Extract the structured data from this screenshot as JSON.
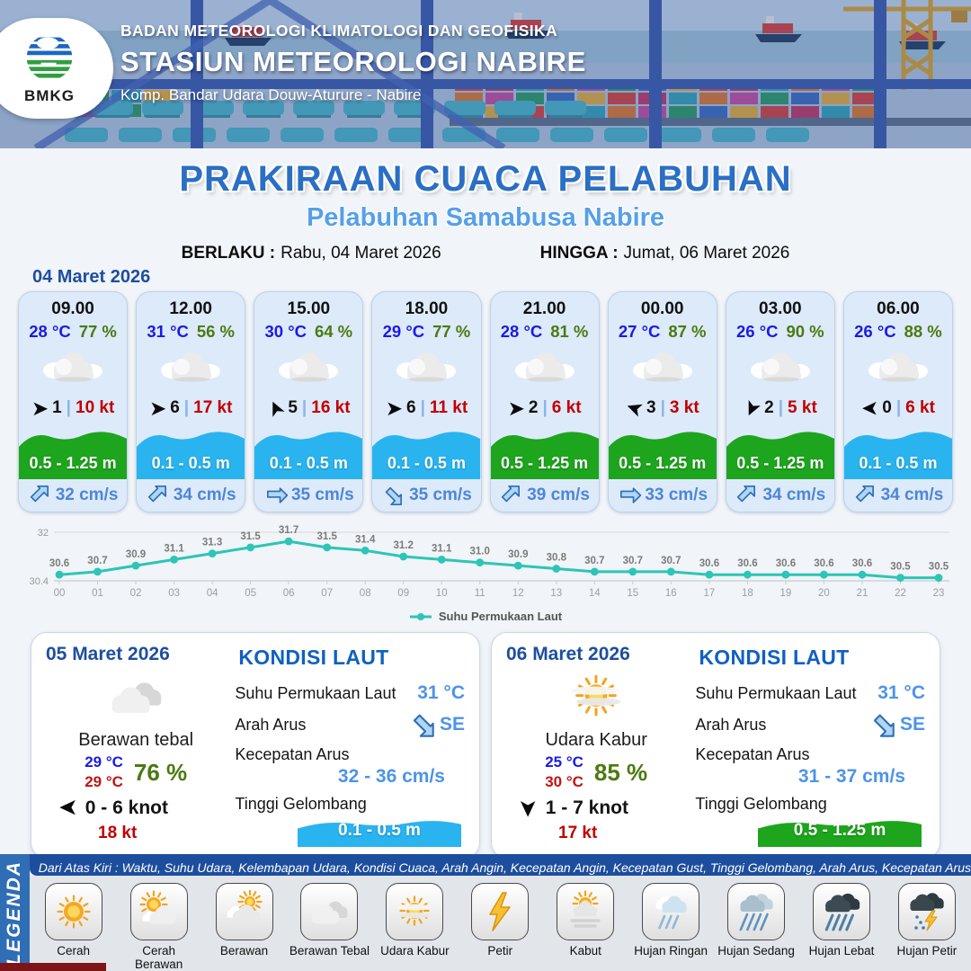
{
  "header": {
    "org": "BADAN METEOROLOGI KLIMATOLOGI DAN GEOFISIKA",
    "station": "STASIUN METEOROLOGI NABIRE",
    "address": "Komp. Bandar Udara Douw-Aturure - Nabire",
    "logo": "BMKG"
  },
  "title": {
    "main": "PRAKIRAAN CUACA PELABUHAN",
    "sub": "Pelabuhan Samabusa Nabire",
    "berlaku_label": "BERLAKU :",
    "berlaku_value": "Rabu, 04 Maret 2026",
    "hingga_label": "HINGGA :",
    "hingga_value": "Jumat, 06 Maret 2026"
  },
  "forecast": {
    "date_label": "04 Maret 2026",
    "cards": [
      {
        "time": "09.00",
        "temp": "28 °C",
        "humidity": "77 %",
        "icon": "berawan-hour",
        "wind_speed": "1",
        "gust": "10 kt",
        "wind_deg": 0,
        "wave": "0.5 - 1.25 m",
        "wave_class": "wave-green",
        "current": "32 cm/s",
        "current_deg": 0
      },
      {
        "time": "12.00",
        "temp": "31 °C",
        "humidity": "56 %",
        "icon": "berawan-hour",
        "wind_speed": "6",
        "gust": "17 kt",
        "wind_deg": 0,
        "wave": "0.1 - 0.5 m",
        "wave_class": "wave-blue",
        "current": "34 cm/s",
        "current_deg": 0
      },
      {
        "time": "15.00",
        "temp": "30 °C",
        "humidity": "64 %",
        "icon": "berawan-hour",
        "wind_speed": "5",
        "gust": "16 kt",
        "wind_deg": -115,
        "wave": "0.1 - 0.5 m",
        "wave_class": "wave-blue",
        "current": "35 cm/s",
        "current_deg": 45
      },
      {
        "time": "18.00",
        "temp": "29 °C",
        "humidity": "77 %",
        "icon": "berawan-hour",
        "wind_speed": "6",
        "gust": "11 kt",
        "wind_deg": 0,
        "wave": "0.1 - 0.5 m",
        "wave_class": "wave-blue",
        "current": "35 cm/s",
        "current_deg": 90
      },
      {
        "time": "21.00",
        "temp": "28 °C",
        "humidity": "81 %",
        "icon": "berawan-hour",
        "wind_speed": "2",
        "gust": "6 kt",
        "wind_deg": 0,
        "wave": "0.5 - 1.25 m",
        "wave_class": "wave-green",
        "current": "39 cm/s",
        "current_deg": 0
      },
      {
        "time": "00.00",
        "temp": "27 °C",
        "humidity": "87 %",
        "icon": "berawan-hour",
        "wind_speed": "3",
        "gust": "3 kt",
        "wind_deg": -160,
        "wave": "0.5 - 1.25 m",
        "wave_class": "wave-green",
        "current": "33 cm/s",
        "current_deg": 45
      },
      {
        "time": "03.00",
        "temp": "26 °C",
        "humidity": "90 %",
        "icon": "berawan-hour",
        "wind_speed": "2",
        "gust": "5 kt",
        "wind_deg": 115,
        "wave": "0.5 - 1.25 m",
        "wave_class": "wave-green",
        "current": "34 cm/s",
        "current_deg": 0
      },
      {
        "time": "06.00",
        "temp": "26 °C",
        "humidity": "88 %",
        "icon": "berawan-hour",
        "wind_speed": "0",
        "gust": "6 kt",
        "wind_deg": 180,
        "wave": "0.1 - 0.5 m",
        "wave_class": "wave-blue",
        "current": "34 cm/s",
        "current_deg": 0
      }
    ]
  },
  "chart_data": {
    "type": "line",
    "legend": "Suhu Permukaan Laut",
    "x": [
      "00",
      "01",
      "02",
      "03",
      "04",
      "05",
      "06",
      "07",
      "08",
      "09",
      "10",
      "11",
      "12",
      "13",
      "14",
      "15",
      "16",
      "17",
      "18",
      "19",
      "20",
      "21",
      "22",
      "23"
    ],
    "values": [
      30.6,
      30.7,
      30.9,
      31.1,
      31.3,
      31.5,
      31.7,
      31.5,
      31.4,
      31.2,
      31.1,
      31.0,
      30.9,
      30.8,
      30.7,
      30.7,
      30.7,
      30.6,
      30.6,
      30.6,
      30.6,
      30.6,
      30.5,
      30.5
    ],
    "ylim": [
      30.4,
      32
    ],
    "yticks": [
      "30.4",
      "32"
    ],
    "color": "#2cc5b6",
    "grid": true,
    "legend_position": "bottom"
  },
  "days": [
    {
      "date": "05 Maret 2026",
      "icon": "berawan-tebal",
      "condition": "Berawan tebal",
      "temp_min": "29 °C",
      "temp_max": "29 °C",
      "humidity": "76 %",
      "wind": "0 - 6 knot",
      "wind_deg": 180,
      "gust": "18 kt",
      "sea": {
        "title": "KONDISI LAUT",
        "sst_label": "Suhu Permukaan Laut",
        "sst": "31 °C",
        "dir_label": "Arah Arus",
        "dir": "SE",
        "dir_deg": 90,
        "speed_label": "Kecepatan Arus",
        "speed": "32 - 36 cm/s",
        "wave_label": "Tinggi Gelombang",
        "wave": "0.1 - 0.5 m",
        "wave_class": "wave-blue"
      }
    },
    {
      "date": "06 Maret 2026",
      "icon": "udara-kabur",
      "condition": "Udara Kabur",
      "temp_min": "25 °C",
      "temp_max": "30 °C",
      "humidity": "85 %",
      "wind": "1 - 7 knot",
      "wind_deg": 90,
      "gust": "17 kt",
      "sea": {
        "title": "KONDISI LAUT",
        "sst_label": "Suhu Permukaan Laut",
        "sst": "31 °C",
        "dir_label": "Arah Arus",
        "dir": "SE",
        "dir_deg": 90,
        "speed_label": "Kecepatan Arus",
        "speed": "31 - 37 cm/s",
        "wave_label": "Tinggi Gelombang",
        "wave": "0.5 - 1.25 m",
        "wave_class": "wave-green"
      }
    }
  ],
  "legend": {
    "heading": "LEGENDA",
    "note": "Dari Atas Kiri : Waktu, Suhu Udara, Kelembapan Udara, Kondisi Cuaca, Arah Angin, Kecepatan Angin, Kecepatan Gust, Tinggi Gelombang, Arah Arus, Kecepatan Arus",
    "items": [
      {
        "label": "Cerah",
        "icon": "cerah"
      },
      {
        "label": "Cerah Berawan",
        "icon": "cerah-berawan"
      },
      {
        "label": "Berawan",
        "icon": "berawan"
      },
      {
        "label": "Berawan Tebal",
        "icon": "berawan-tebal"
      },
      {
        "label": "Udara Kabur",
        "icon": "udara-kabur"
      },
      {
        "label": "Petir",
        "icon": "petir"
      },
      {
        "label": "Kabut",
        "icon": "kabut"
      },
      {
        "label": "Hujan Ringan",
        "icon": "hujan-ringan"
      },
      {
        "label": "Hujan Sedang",
        "icon": "hujan-sedang"
      },
      {
        "label": "Hujan Lebat",
        "icon": "hujan-lebat"
      },
      {
        "label": "Hujan Petir",
        "icon": "hujan-petir"
      }
    ]
  },
  "colors": {
    "primary_blue": "#1d4e9e",
    "title_blue": "#2a6fc4",
    "subtitle_blue": "#56a0e8",
    "temp_blue": "#1a1ae6",
    "humidity_green": "#4b7a10",
    "gust_red": "#c00000",
    "wave_green": "#1ea51e",
    "wave_blue": "#29b4ef",
    "current_blue": "#4d86d8",
    "chart_teal": "#2cc5b6"
  }
}
